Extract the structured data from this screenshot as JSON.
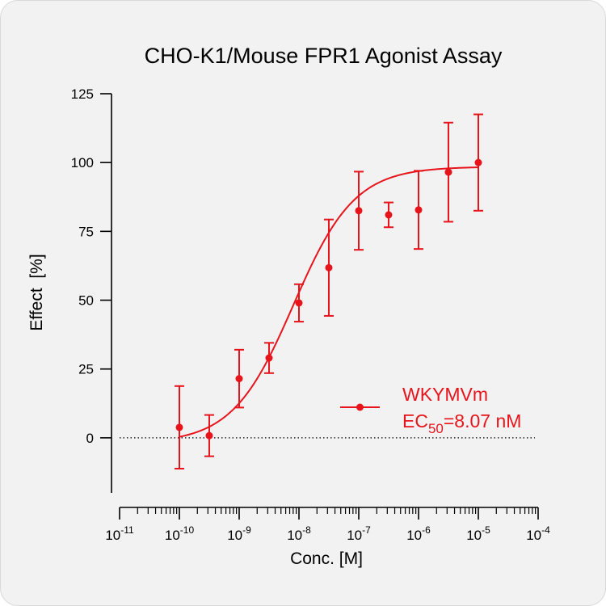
{
  "chart_data": {
    "type": "scatter",
    "title": "CHO-K1/Mouse FPR1 Agonist Assay",
    "xlabel": "Conc. [M]",
    "ylabel": "Effect  [%]",
    "x_scale": "log",
    "xlim": [
      1e-11,
      0.0001
    ],
    "ylim": [
      -20,
      125
    ],
    "x_ticks": [
      {
        "base": "10",
        "exp": "-11"
      },
      {
        "base": "10",
        "exp": "-10"
      },
      {
        "base": "10",
        "exp": "-9"
      },
      {
        "base": "10",
        "exp": "-8"
      },
      {
        "base": "10",
        "exp": "-7"
      },
      {
        "base": "10",
        "exp": "-6"
      },
      {
        "base": "10",
        "exp": "-5"
      },
      {
        "base": "10",
        "exp": "-4"
      }
    ],
    "y_ticks": [
      0,
      25,
      50,
      75,
      100,
      125
    ],
    "reference_line_y": 0,
    "series": [
      {
        "name": "WKYMVm",
        "color": "#e8141c",
        "points": [
          {
            "x": 1e-10,
            "y": 3.8,
            "err": 15.0
          },
          {
            "x": 3.16e-10,
            "y": 0.8,
            "err": 7.5
          },
          {
            "x": 1e-09,
            "y": 21.5,
            "err": 10.5
          },
          {
            "x": 3.16e-09,
            "y": 29.0,
            "err": 5.5
          },
          {
            "x": 1e-08,
            "y": 49.0,
            "err": 6.8
          },
          {
            "x": 3.16e-08,
            "y": 61.8,
            "err": 17.5
          },
          {
            "x": 1e-07,
            "y": 82.5,
            "err": 14.2
          },
          {
            "x": 3.16e-07,
            "y": 81.0,
            "err": 4.5
          },
          {
            "x": 1e-06,
            "y": 82.8,
            "err": 14.2
          },
          {
            "x": 3.16e-06,
            "y": 96.5,
            "err": 18.0
          },
          {
            "x": 1e-05,
            "y": 100.0,
            "err": 17.5
          }
        ],
        "fit": {
          "model": "4PL",
          "bottom": -2,
          "top": 98.5,
          "ec50": 8.07e-09,
          "hill": 0.85,
          "x_range": [
            1e-10,
            1e-05
          ]
        }
      }
    ],
    "legend": {
      "position": "right",
      "label": "WKYMVm",
      "ec50_prefix": "EC",
      "ec50_sub": "50",
      "ec50_value": "=8.07 nM"
    }
  }
}
